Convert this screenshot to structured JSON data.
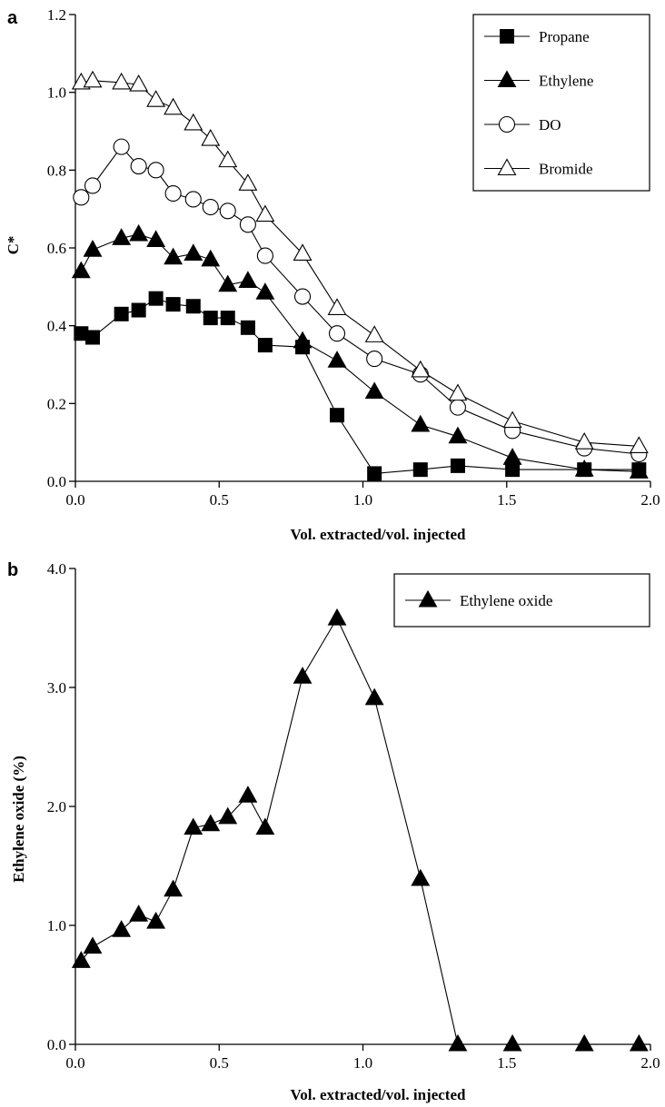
{
  "chart_data": [
    {
      "panel_label": "a",
      "type": "line",
      "xlabel": "Vol. extracted/vol. injected",
      "ylabel": "C*",
      "xlim": [
        0,
        2.0
      ],
      "ylim": [
        0,
        1.2
      ],
      "xticks": [
        "0.0",
        "0.5",
        "1.0",
        "1.5",
        "2.0"
      ],
      "yticks": [
        "0.0",
        "0.2",
        "0.4",
        "0.6",
        "0.8",
        "1.0",
        "1.2"
      ],
      "legend_position": "top-right",
      "series": [
        {
          "name": "Propane",
          "marker": "square-filled",
          "x": [
            0.02,
            0.06,
            0.16,
            0.22,
            0.28,
            0.34,
            0.41,
            0.47,
            0.53,
            0.6,
            0.66,
            0.79,
            0.91,
            1.04,
            1.2,
            1.33,
            1.52,
            1.77,
            1.96
          ],
          "y": [
            0.38,
            0.37,
            0.43,
            0.44,
            0.47,
            0.455,
            0.45,
            0.42,
            0.42,
            0.395,
            0.35,
            0.345,
            0.17,
            0.02,
            0.03,
            0.04,
            0.03,
            0.03,
            0.03
          ]
        },
        {
          "name": "Ethylene",
          "marker": "triangle-filled",
          "x": [
            0.02,
            0.06,
            0.16,
            0.22,
            0.28,
            0.34,
            0.41,
            0.47,
            0.53,
            0.6,
            0.66,
            0.79,
            0.91,
            1.04,
            1.2,
            1.33,
            1.52,
            1.77,
            1.96
          ],
          "y": [
            0.54,
            0.595,
            0.625,
            0.635,
            0.62,
            0.575,
            0.585,
            0.57,
            0.505,
            0.515,
            0.485,
            0.36,
            0.31,
            0.23,
            0.145,
            0.115,
            0.06,
            0.03,
            0.025
          ]
        },
        {
          "name": "DO",
          "marker": "circle-open",
          "x": [
            0.02,
            0.06,
            0.16,
            0.22,
            0.28,
            0.34,
            0.41,
            0.47,
            0.53,
            0.6,
            0.66,
            0.79,
            0.91,
            1.04,
            1.2,
            1.33,
            1.52,
            1.77,
            1.96
          ],
          "y": [
            0.73,
            0.76,
            0.86,
            0.81,
            0.8,
            0.74,
            0.725,
            0.705,
            0.695,
            0.66,
            0.58,
            0.475,
            0.38,
            0.315,
            0.275,
            0.19,
            0.13,
            0.085,
            0.07
          ]
        },
        {
          "name": "Bromide",
          "marker": "triangle-open",
          "x": [
            0.02,
            0.06,
            0.16,
            0.22,
            0.28,
            0.34,
            0.41,
            0.47,
            0.53,
            0.6,
            0.66,
            0.79,
            0.91,
            1.04,
            1.2,
            1.33,
            1.52,
            1.77,
            1.96
          ],
          "y": [
            1.025,
            1.03,
            1.025,
            1.02,
            0.98,
            0.96,
            0.92,
            0.88,
            0.825,
            0.765,
            0.685,
            0.585,
            0.445,
            0.375,
            0.285,
            0.225,
            0.155,
            0.1,
            0.09
          ]
        }
      ]
    },
    {
      "panel_label": "b",
      "type": "line",
      "xlabel": "Vol. extracted/vol. injected",
      "ylabel": "Ethylene oxide (%)",
      "xlim": [
        0,
        2.0
      ],
      "ylim": [
        0,
        4.0
      ],
      "xticks": [
        "0.0",
        "0.5",
        "1.0",
        "1.5",
        "2.0"
      ],
      "yticks": [
        "0.0",
        "1.0",
        "2.0",
        "3.0",
        "4.0"
      ],
      "legend_position": "top-right",
      "series": [
        {
          "name": "Ethylene oxide",
          "marker": "triangle-filled",
          "x": [
            0.02,
            0.06,
            0.16,
            0.22,
            0.28,
            0.34,
            0.41,
            0.47,
            0.53,
            0.6,
            0.66,
            0.79,
            0.91,
            1.04,
            1.2,
            1.33,
            1.52,
            1.77,
            1.96
          ],
          "y": [
            0.7,
            0.82,
            0.96,
            1.09,
            1.03,
            1.3,
            1.82,
            1.85,
            1.91,
            2.09,
            1.82,
            3.09,
            3.58,
            2.91,
            1.39,
            0.0,
            0.0,
            0.0,
            0.0
          ]
        }
      ]
    }
  ]
}
